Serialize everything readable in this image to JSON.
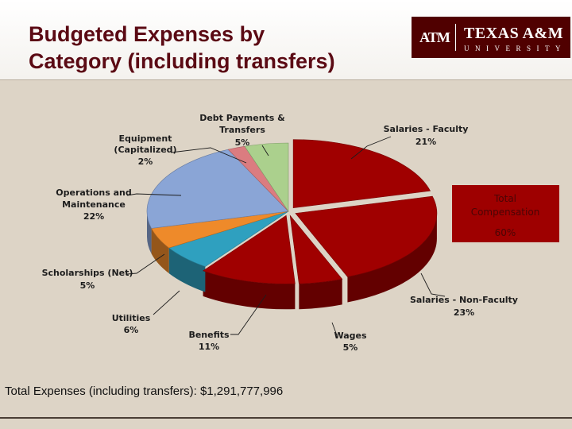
{
  "slide": {
    "title_line1": "Budgeted Expenses by",
    "title_line2": "Category (including transfers)",
    "footer_total": "Total Expenses (including transfers): $1,291,777,996"
  },
  "logo": {
    "mark": "ATM",
    "wordmark": "TEXAS A&M",
    "subtitle": "UNIVERSITY",
    "color": "#500000"
  },
  "callout": {
    "line1": "Total",
    "line2": "Compensation",
    "line3": "60%",
    "fill": "#9e0000"
  },
  "chart_data": {
    "type": "pie",
    "style": "3d-exploded",
    "legend": "none",
    "slices": [
      {
        "name": "Salaries - Faculty",
        "value": 21,
        "label": "21%",
        "color": "#a00000",
        "exploded": true
      },
      {
        "name": "Salaries - Non-Faculty",
        "value": 23,
        "label": "23%",
        "color": "#a00000",
        "exploded": true
      },
      {
        "name": "Wages",
        "value": 5,
        "label": "5%",
        "color": "#a00000",
        "exploded": true
      },
      {
        "name": "Benefits",
        "value": 11,
        "label": "11%",
        "color": "#a00000",
        "exploded": true
      },
      {
        "name": "Utilities",
        "value": 6,
        "label": "6%",
        "color": "#2fa0bf",
        "exploded": false
      },
      {
        "name": "Scholarships (Net)",
        "value": 5,
        "label": "5%",
        "color": "#ee8a2a",
        "exploded": false
      },
      {
        "name": "Operations and Maintenance",
        "value": 22,
        "label": "22%",
        "color": "#8aa5d6",
        "exploded": false
      },
      {
        "name": "Equipment (Capitalized)",
        "value": 2,
        "label": "2%",
        "color": "#db7c80",
        "exploded": false
      },
      {
        "name": "Debt Payments & Transfers",
        "value": 5,
        "label": "5%",
        "color": "#abd08d",
        "exploded": false
      }
    ]
  }
}
